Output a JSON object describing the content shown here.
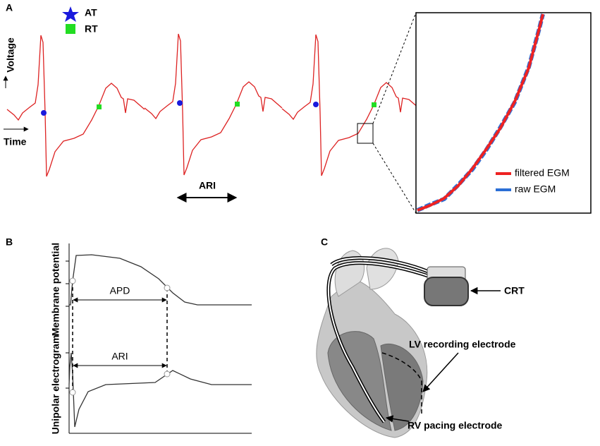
{
  "panel_a": {
    "label": "A",
    "legend": [
      "AT",
      "RT"
    ],
    "y_axis": "Voltage",
    "x_axis": "Time",
    "interval": "ARI",
    "inset_legend": [
      "filtered EGM",
      "raw EGM"
    ]
  },
  "panel_b": {
    "label": "B",
    "top_axis": "Membrane potential",
    "bottom_axis": "Unipolar electrogram",
    "top_interval": "APD",
    "bottom_interval": "ARI"
  },
  "panel_c": {
    "label": "C",
    "device": "CRT",
    "lv_electrode": "LV recording electrode",
    "rv_electrode": "RV pacing electrode"
  }
}
